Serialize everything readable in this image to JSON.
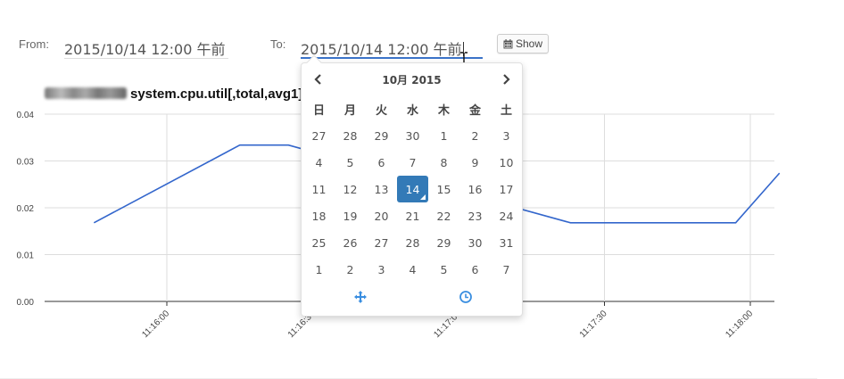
{
  "filters": {
    "from_label": "From:",
    "from_value": "2015/10/14 12:00 午前",
    "to_label": "To:",
    "to_value": "2015/10/14 12:00 午前",
    "show_label": "Show",
    "show_icon": "calendar-icon"
  },
  "chart_title": "system.cpu.util[,total,avg1]",
  "datepicker": {
    "month_label": "10月 2015",
    "prev_icon": "chevron-left-icon",
    "next_icon": "chevron-right-icon",
    "weekdays": [
      "日",
      "月",
      "火",
      "水",
      "木",
      "金",
      "土"
    ],
    "weeks": [
      [
        "27",
        "28",
        "29",
        "30",
        "1",
        "2",
        "3"
      ],
      [
        "4",
        "5",
        "6",
        "7",
        "8",
        "9",
        "10"
      ],
      [
        "11",
        "12",
        "13",
        "14",
        "15",
        "16",
        "17"
      ],
      [
        "18",
        "19",
        "20",
        "21",
        "22",
        "23",
        "24"
      ],
      [
        "25",
        "26",
        "27",
        "28",
        "29",
        "30",
        "31"
      ],
      [
        "1",
        "2",
        "3",
        "4",
        "5",
        "6",
        "7"
      ]
    ],
    "selected_day": "14",
    "accent_color": "#337ab7",
    "toggle_date_icon": "move-icon",
    "toggle_time_icon": "clock-icon"
  },
  "chart_data": {
    "type": "line",
    "title": "system.cpu.util[,total,avg1]",
    "xlabel": "",
    "ylabel": "",
    "ylim": [
      0,
      0.04
    ],
    "yticks": [
      "0.00",
      "0.01",
      "0.02",
      "0.03",
      "0.04"
    ],
    "xticks": [
      "11:16:00",
      "11:16:30",
      "11:17:00",
      "11:17:30",
      "11:18:00"
    ],
    "x_seconds_from_1115": [
      45,
      75,
      85,
      143,
      150,
      177,
      186
    ],
    "values": [
      0.0168,
      0.0334,
      0.0334,
      0.0168,
      0.0168,
      0.0168,
      0.0274
    ],
    "grid": true,
    "line_color": "#3366cc"
  }
}
